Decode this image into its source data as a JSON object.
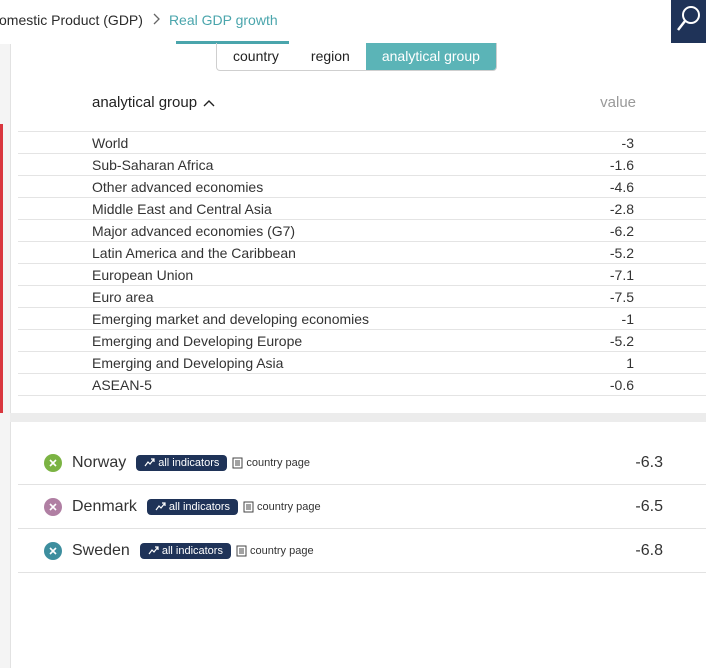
{
  "breadcrumb": {
    "parent": "omestic Product (GDP)",
    "separator": ">",
    "current": "Real GDP growth"
  },
  "search": {
    "icon": "search-icon"
  },
  "tabs": [
    {
      "label": "country",
      "active": false
    },
    {
      "label": "region",
      "active": false
    },
    {
      "label": "analytical group",
      "active": true
    }
  ],
  "table": {
    "header_label": "analytical group",
    "header_value": "value",
    "rows": [
      {
        "name": "World",
        "value": "-3"
      },
      {
        "name": "Sub-Saharan Africa",
        "value": "-1.6"
      },
      {
        "name": "Other advanced economies",
        "value": "-4.6"
      },
      {
        "name": "Middle East and Central Asia",
        "value": "-2.8"
      },
      {
        "name": "Major advanced economies (G7)",
        "value": "-6.2"
      },
      {
        "name": "Latin America and the Caribbean",
        "value": "-5.2"
      },
      {
        "name": "European Union",
        "value": "-7.1"
      },
      {
        "name": "Euro area",
        "value": "-7.5"
      },
      {
        "name": "Emerging market and developing economies",
        "value": "-1"
      },
      {
        "name": "Emerging and Developing Europe",
        "value": "-5.2"
      },
      {
        "name": "Emerging and Developing Asia",
        "value": "1"
      },
      {
        "name": "ASEAN-5",
        "value": "-0.6"
      }
    ]
  },
  "countries": [
    {
      "name": "Norway",
      "badge": "all indicators",
      "page": "country page",
      "value": "-6.3",
      "color": "#7bb343"
    },
    {
      "name": "Denmark",
      "badge": "all indicators",
      "page": "country page",
      "value": "-6.5",
      "color": "#b07fa3"
    },
    {
      "name": "Sweden",
      "badge": "all indicators",
      "page": "country page",
      "value": "-6.8",
      "color": "#3d8e9e"
    }
  ],
  "colors": {
    "accent": "#4aa5ac",
    "tab_active": "#5bb4b7",
    "navy": "#1f3358",
    "red_bar": "#d9363e"
  }
}
